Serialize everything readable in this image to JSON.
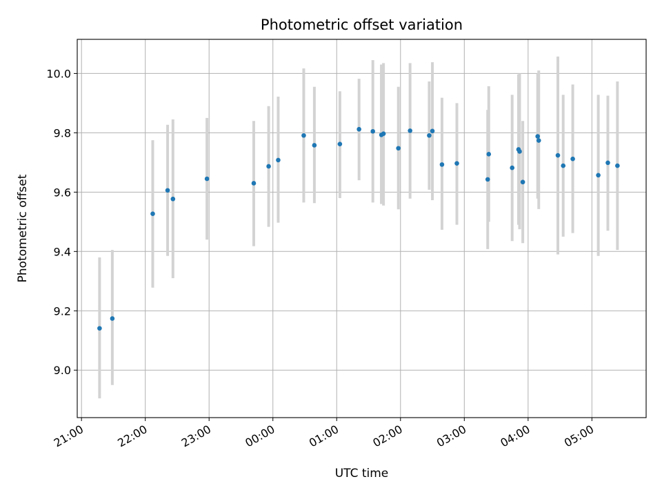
{
  "chart_data": {
    "type": "scatter",
    "title": "Photometric offset variation",
    "xlabel": "UTC time",
    "ylabel": "Photometric offset",
    "x_range": [
      "20:56",
      "05:51"
    ],
    "ylim": [
      8.84,
      10.115
    ],
    "grid": true,
    "x_ticks": [
      "21:00",
      "22:00",
      "23:00",
      "00:00",
      "01:00",
      "02:00",
      "03:00",
      "04:00",
      "05:00"
    ],
    "y_ticks": [
      "9.0",
      "9.2",
      "9.4",
      "9.6",
      "9.8",
      "10.0"
    ],
    "colors": {
      "point": "#1f77b4",
      "errorbar": "#d3d3d3",
      "grid": "#b0b0b0"
    },
    "points": [
      {
        "t": "21:17",
        "y": 9.141,
        "lo": 8.905,
        "hi": 9.38
      },
      {
        "t": "21:29",
        "y": 9.174,
        "lo": 8.95,
        "hi": 9.405
      },
      {
        "t": "22:07",
        "y": 9.527,
        "lo": 9.278,
        "hi": 9.775
      },
      {
        "t": "22:21",
        "y": 9.606,
        "lo": 9.385,
        "hi": 9.827
      },
      {
        "t": "22:26",
        "y": 9.577,
        "lo": 9.31,
        "hi": 9.845
      },
      {
        "t": "22:58",
        "y": 9.645,
        "lo": 9.44,
        "hi": 9.85
      },
      {
        "t": "23:42",
        "y": 9.63,
        "lo": 9.418,
        "hi": 9.84
      },
      {
        "t": "23:56",
        "y": 9.687,
        "lo": 9.483,
        "hi": 9.89
      },
      {
        "t": "00:05",
        "y": 9.708,
        "lo": 9.497,
        "hi": 9.922
      },
      {
        "t": "00:29",
        "y": 9.791,
        "lo": 9.565,
        "hi": 10.017
      },
      {
        "t": "00:39",
        "y": 9.758,
        "lo": 9.563,
        "hi": 9.955
      },
      {
        "t": "01:03",
        "y": 9.762,
        "lo": 9.58,
        "hi": 9.94
      },
      {
        "t": "01:21",
        "y": 9.812,
        "lo": 9.64,
        "hi": 9.982
      },
      {
        "t": "01:34",
        "y": 9.805,
        "lo": 9.565,
        "hi": 10.045
      },
      {
        "t": "01:42",
        "y": 9.793,
        "lo": 9.56,
        "hi": 10.03
      },
      {
        "t": "01:44",
        "y": 9.797,
        "lo": 9.555,
        "hi": 10.035
      },
      {
        "t": "01:58",
        "y": 9.748,
        "lo": 9.542,
        "hi": 9.955
      },
      {
        "t": "02:09",
        "y": 9.807,
        "lo": 9.578,
        "hi": 10.035
      },
      {
        "t": "02:27",
        "y": 9.791,
        "lo": 9.608,
        "hi": 9.973
      },
      {
        "t": "02:30",
        "y": 9.806,
        "lo": 9.573,
        "hi": 10.038
      },
      {
        "t": "02:39",
        "y": 9.693,
        "lo": 9.473,
        "hi": 9.918
      },
      {
        "t": "02:53",
        "y": 9.697,
        "lo": 9.49,
        "hi": 9.9
      },
      {
        "t": "03:22",
        "y": 9.643,
        "lo": 9.408,
        "hi": 9.877
      },
      {
        "t": "03:23",
        "y": 9.728,
        "lo": 9.5,
        "hi": 9.957
      },
      {
        "t": "03:45",
        "y": 9.682,
        "lo": 9.435,
        "hi": 9.928
      },
      {
        "t": "03:51",
        "y": 9.744,
        "lo": 9.49,
        "hi": 9.997
      },
      {
        "t": "03:52",
        "y": 9.737,
        "lo": 9.475,
        "hi": 10.0
      },
      {
        "t": "03:55",
        "y": 9.634,
        "lo": 9.428,
        "hi": 9.84
      },
      {
        "t": "04:09",
        "y": 9.788,
        "lo": 9.578,
        "hi": 10.0
      },
      {
        "t": "04:10",
        "y": 9.774,
        "lo": 9.543,
        "hi": 10.01
      },
      {
        "t": "04:28",
        "y": 9.724,
        "lo": 9.39,
        "hi": 10.057
      },
      {
        "t": "04:33",
        "y": 9.689,
        "lo": 9.45,
        "hi": 9.928
      },
      {
        "t": "04:42",
        "y": 9.712,
        "lo": 9.462,
        "hi": 9.963
      },
      {
        "t": "05:06",
        "y": 9.657,
        "lo": 9.385,
        "hi": 9.928
      },
      {
        "t": "05:15",
        "y": 9.699,
        "lo": 9.47,
        "hi": 9.925
      },
      {
        "t": "05:24",
        "y": 9.689,
        "lo": 9.405,
        "hi": 9.973
      }
    ]
  }
}
